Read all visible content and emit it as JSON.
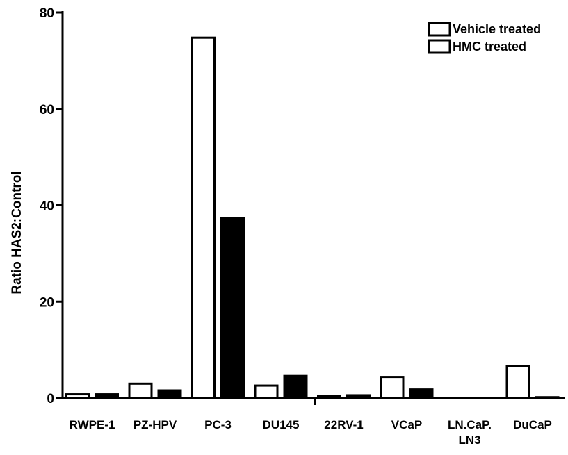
{
  "chart_data": {
    "type": "bar",
    "title": "",
    "xlabel": "",
    "ylabel": "Ratio  HAS2:Control",
    "ylim": [
      0,
      80
    ],
    "yticks": [
      "0",
      "20",
      "40",
      "60",
      "80"
    ],
    "categories": [
      "RWPE-1",
      "PZ-HPV",
      "PC-3",
      "DU145",
      "22RV-1",
      "VCaP",
      "LN.CaP.\nLN3",
      "DuCaP"
    ],
    "series": [
      {
        "name": "Vehicle treated",
        "style": "open",
        "values": [
          1.0,
          3.2,
          75.0,
          2.8,
          0.6,
          4.6,
          0.1,
          6.8
        ]
      },
      {
        "name": "HMC treated",
        "style": "filled",
        "values": [
          1.0,
          1.8,
          37.5,
          4.8,
          0.8,
          2.0,
          0.1,
          0.4
        ]
      }
    ],
    "legend": {
      "placement": "top-right"
    },
    "grid": false,
    "colors": {
      "bar_stroke": "#000000",
      "open_fill": "#ffffff",
      "filled_fill": "#000000",
      "axis": "#000000"
    }
  }
}
